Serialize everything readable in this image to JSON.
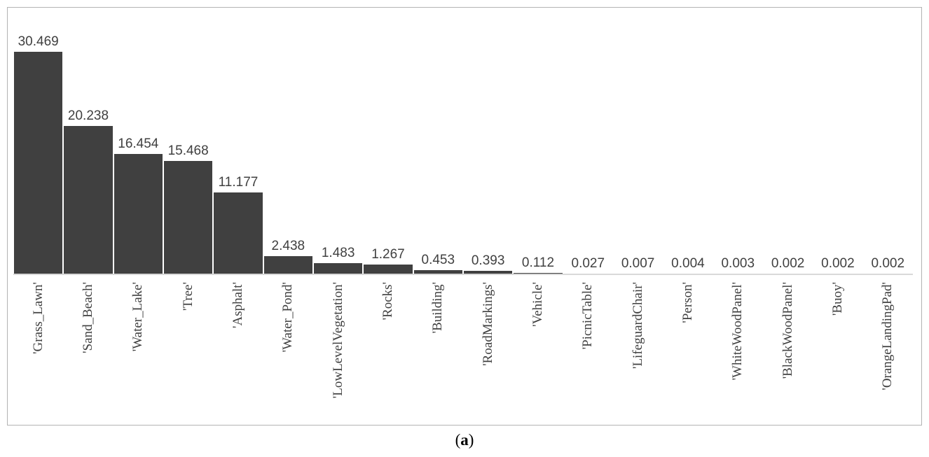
{
  "figure": {
    "caption": {
      "prefix": "(",
      "letter": "a",
      "suffix": ")"
    }
  },
  "chart_data": {
    "type": "bar",
    "categories": [
      "'Grass_Lawn'",
      "'Sand_Beach'",
      "'Water_Lake'",
      "'Tree'",
      "'Asphalt'",
      "'Water_Pond'",
      "'LowLevelVegetation'",
      "'Rocks'",
      "'Building'",
      "'RoadMarkings'",
      "'Vehicle'",
      "'PicnicTable'",
      "'LifeguardChair'",
      "'Person'",
      "'WhiteWoodPanel'",
      "'BlackWoodPanel'",
      "'Buoy'",
      "'OrangeLandingPad'"
    ],
    "values": [
      30.469,
      20.238,
      16.454,
      15.468,
      11.177,
      2.438,
      1.483,
      1.267,
      0.453,
      0.393,
      0.112,
      0.027,
      0.007,
      0.004,
      0.003,
      0.002,
      0.002,
      0.002
    ],
    "value_labels": [
      "30.469",
      "20.238",
      "16.454",
      "15.468",
      "11.177",
      "2.438",
      "1.483",
      "1.267",
      "0.453",
      "0.393",
      "0.112",
      "0.027",
      "0.007",
      "0.004",
      "0.003",
      "0.002",
      "0.002",
      "0.002"
    ],
    "title": "",
    "xlabel": "",
    "ylabel": "",
    "ylim": [
      0,
      35
    ],
    "grid": false,
    "legend": false,
    "x_label_rotation_deg": 90,
    "colors": {
      "bar": "#404040",
      "value_label": "#404040",
      "axis_line": "#d9d9d9",
      "frame_border": "#b3b3b3",
      "background": "#ffffff"
    }
  }
}
